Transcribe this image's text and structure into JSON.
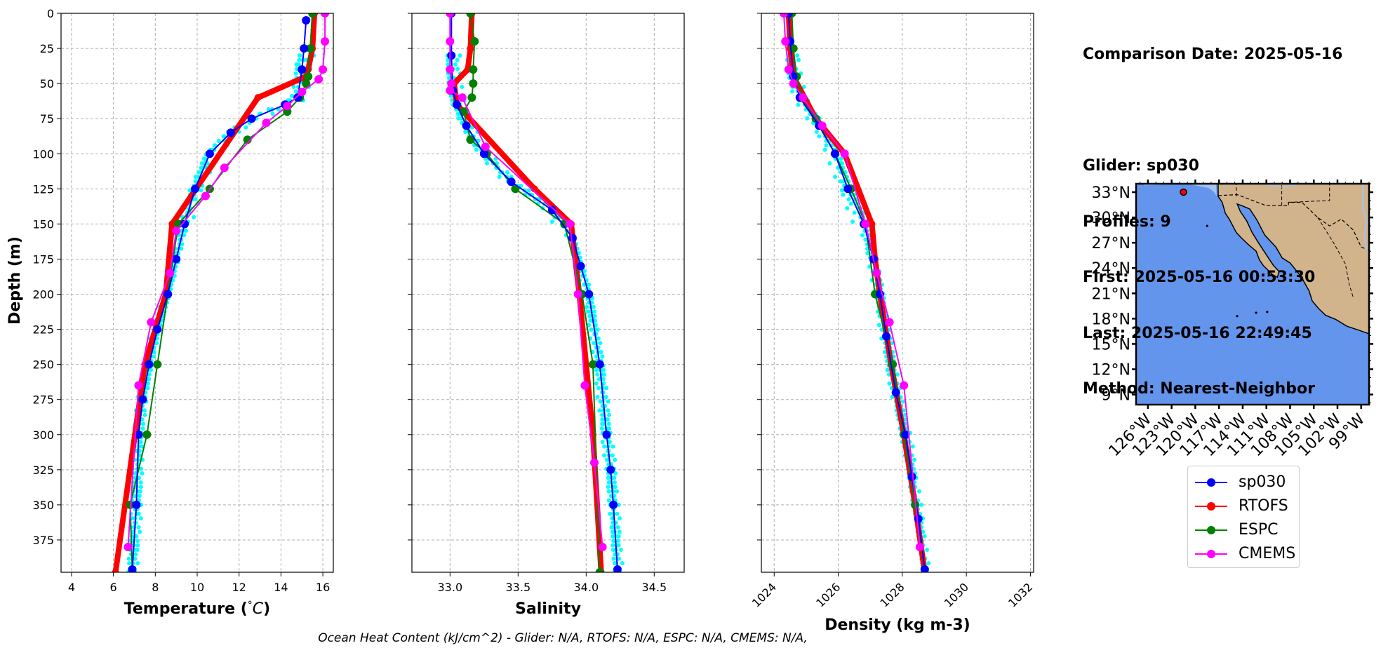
{
  "colors": {
    "glider": "#0000ff",
    "glider_raw": "#00ffff",
    "rtofs": "#ff0000",
    "espc": "#008000",
    "cmems": "#ff00ff",
    "ocean": "#6495ed",
    "land": "#d2b48c",
    "shelf": "#a5c3ee"
  },
  "chart_data": [
    {
      "type": "line",
      "xlabel": "Temperature (°C)",
      "ylabel": "Depth (m)",
      "xlim": [
        3.5,
        16.5
      ],
      "ylim": [
        398,
        0
      ],
      "xticks": [
        "4",
        "6",
        "8",
        "10",
        "12",
        "14",
        "16"
      ],
      "yticks": [
        "0",
        "25",
        "50",
        "75",
        "100",
        "125",
        "150",
        "175",
        "200",
        "225",
        "250",
        "275",
        "300",
        "325",
        "350",
        "375"
      ],
      "grid": true,
      "series": [
        {
          "name": "sp030",
          "x": [
            15.2,
            15.1,
            15.0,
            14.8,
            14.2,
            12.6,
            11.6,
            10.6,
            9.9,
            9.4,
            9.0,
            8.6,
            8.1,
            7.7,
            7.4,
            7.2,
            7.1,
            6.9
          ],
          "y": [
            5,
            25,
            40,
            60,
            65,
            75,
            85,
            100,
            125,
            150,
            175,
            200,
            225,
            250,
            275,
            300,
            350,
            396
          ]
        },
        {
          "name": "RTOFS",
          "x": [
            15.6,
            15.5,
            15.3,
            15.2,
            12.9,
            8.8,
            8.5,
            7.5,
            6.1
          ],
          "y": [
            0,
            25,
            40,
            45,
            60,
            150,
            200,
            250,
            398
          ]
        },
        {
          "name": "ESPC",
          "x": [
            15.5,
            15.4,
            15.3,
            15.2,
            14.9,
            14.3,
            12.4,
            10.6,
            9.1,
            8.6,
            8.1,
            7.6,
            6.8,
            6.9
          ],
          "y": [
            0,
            25,
            45,
            50,
            60,
            70,
            90,
            125,
            150,
            200,
            250,
            300,
            350,
            396
          ]
        },
        {
          "name": "CMEMS",
          "x": [
            16.1,
            16.1,
            16.0,
            15.8,
            15.0,
            14.3,
            13.3,
            11.3,
            10.4,
            9.0,
            8.7,
            7.8,
            7.2,
            6.7
          ],
          "y": [
            0,
            20,
            40,
            47,
            56,
            66,
            78,
            110,
            130,
            155,
            185,
            220,
            265,
            380
          ]
        }
      ]
    },
    {
      "type": "line",
      "xlabel": "Salinity",
      "xlim": [
        32.72,
        34.72
      ],
      "ylim": [
        398,
        0
      ],
      "xticks": [
        "33.0",
        "33.5",
        "34.0",
        "34.5"
      ],
      "grid": true,
      "series": [
        {
          "name": "sp030",
          "x": [
            33.01,
            33.01,
            33.02,
            33.05,
            33.12,
            33.25,
            33.45,
            33.75,
            33.9,
            33.96,
            34.02,
            34.1,
            34.15,
            34.18,
            34.2,
            34.23
          ],
          "y": [
            0,
            30,
            55,
            65,
            80,
            100,
            120,
            140,
            160,
            180,
            200,
            250,
            300,
            325,
            350,
            396
          ]
        },
        {
          "name": "RTOFS",
          "x": [
            33.16,
            33.15,
            33.13,
            33.03,
            33.05,
            33.62,
            33.89,
            33.95,
            34.05,
            34.11
          ],
          "y": [
            0,
            25,
            40,
            50,
            65,
            125,
            150,
            200,
            300,
            398
          ]
        },
        {
          "name": "ESPC",
          "x": [
            33.15,
            33.18,
            33.17,
            33.17,
            33.16,
            33.1,
            33.15,
            33.27,
            33.48,
            33.84,
            33.97,
            34.05,
            34.1
          ],
          "y": [
            0,
            20,
            40,
            50,
            60,
            70,
            90,
            100,
            125,
            150,
            200,
            250,
            398
          ]
        },
        {
          "name": "CMEMS",
          "x": [
            33.0,
            33.0,
            33.0,
            33.01,
            33.0,
            33.09,
            33.26,
            33.88,
            33.94,
            33.99,
            34.06,
            34.12
          ],
          "y": [
            0,
            20,
            40,
            50,
            55,
            60,
            95,
            150,
            200,
            265,
            320,
            380
          ]
        }
      ]
    },
    {
      "type": "line",
      "xlabel": "Density (kg m-3)",
      "xlim": [
        1023.6,
        1032.1
      ],
      "ylim": [
        398,
        0
      ],
      "xticks": [
        "1024",
        "1026",
        "1028",
        "1030",
        "1032"
      ],
      "grid": true,
      "series": [
        {
          "name": "sp030",
          "x": [
            1024.45,
            1024.5,
            1024.6,
            1024.8,
            1025.4,
            1025.9,
            1026.3,
            1026.8,
            1027.1,
            1027.3,
            1027.5,
            1027.8,
            1028.1,
            1028.3,
            1028.5,
            1028.7
          ],
          "y": [
            0,
            20,
            45,
            60,
            80,
            100,
            125,
            150,
            175,
            200,
            230,
            270,
            300,
            330,
            360,
            396
          ]
        },
        {
          "name": "RTOFS",
          "x": [
            1024.45,
            1024.5,
            1024.6,
            1025.3,
            1026.2,
            1027.05,
            1027.15,
            1027.3,
            1027.65,
            1028.05,
            1028.4,
            1028.7
          ],
          "y": [
            0,
            25,
            45,
            75,
            100,
            150,
            175,
            200,
            250,
            300,
            350,
            398
          ]
        },
        {
          "name": "ESPC",
          "x": [
            1024.55,
            1024.6,
            1024.7,
            1024.9,
            1025.3,
            1025.9,
            1026.4,
            1026.85,
            1027.15,
            1027.7,
            1028.05,
            1028.4,
            1028.7
          ],
          "y": [
            0,
            25,
            45,
            60,
            75,
            100,
            125,
            150,
            200,
            250,
            300,
            350,
            396
          ]
        },
        {
          "name": "CMEMS",
          "x": [
            1024.3,
            1024.35,
            1024.45,
            1024.6,
            1024.9,
            1025.5,
            1026.2,
            1026.85,
            1027.2,
            1027.6,
            1028.05,
            1028.55
          ],
          "y": [
            0,
            20,
            40,
            50,
            60,
            80,
            100,
            150,
            185,
            220,
            265,
            380
          ]
        }
      ]
    },
    {
      "type": "map",
      "lat_ticks": [
        "33°N",
        "30°N",
        "27°N",
        "24°N",
        "21°N",
        "18°N",
        "15°N",
        "12°N",
        "9°N"
      ],
      "lon_ticks": [
        "126°W",
        "123°W",
        "120°W",
        "117°W",
        "114°W",
        "111°W",
        "108°W",
        "105°W",
        "102°W",
        "99°W"
      ],
      "marker_lat": 33.0,
      "marker_lon": -121.5
    }
  ],
  "info": {
    "comparison_date": "Comparison Date: 2025-05-16",
    "glider": "Glider: sp030",
    "profiles": "Profiles: 9",
    "first": "First: 2025-05-16 00:53:30",
    "last": "Last: 2025-05-16 22:49:45",
    "method": "Method: Nearest-Neighbor"
  },
  "legend": [
    {
      "label": "sp030",
      "color": "#0000ff"
    },
    {
      "label": "RTOFS",
      "color": "#ff0000"
    },
    {
      "label": "ESPC",
      "color": "#008000"
    },
    {
      "label": "CMEMS",
      "color": "#ff00ff"
    }
  ],
  "footer": "Ocean Heat Content (kJ/cm^2) - Glider: N/A,  RTOFS: N/A,  ESPC: N/A,  CMEMS: N/A,"
}
